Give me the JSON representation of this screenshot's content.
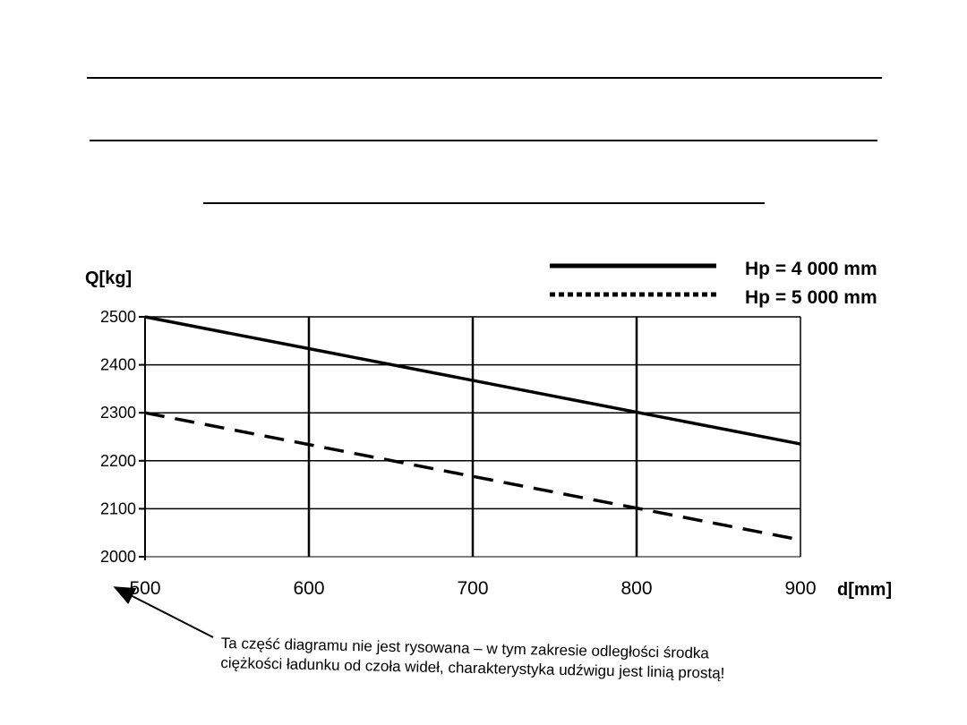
{
  "chart_data": {
    "type": "line",
    "ylabel": "Q[kg]",
    "xlabel": "d[mm]",
    "xlim": [
      500,
      900
    ],
    "ylim": [
      2000,
      2500
    ],
    "x_ticks": [
      500,
      600,
      700,
      800,
      900
    ],
    "y_ticks": [
      2000,
      2100,
      2200,
      2300,
      2400,
      2500
    ],
    "grid": true,
    "legend_position": "top-right",
    "series": [
      {
        "name": "Hp = 4 000 mm",
        "style": "solid",
        "x": [
          500,
          900
        ],
        "y": [
          2500,
          2235
        ]
      },
      {
        "name": "Hp = 5 000 mm",
        "style": "dashed",
        "x": [
          500,
          900
        ],
        "y": [
          2300,
          2035
        ]
      }
    ],
    "annotation": {
      "line1": "Ta część diagramu nie jest rysowana – w tym zakresie odległości środka",
      "line2": "ciężkości ładunku od czoła wideł, charakterystyka udźwigu jest linią prostą!"
    }
  }
}
